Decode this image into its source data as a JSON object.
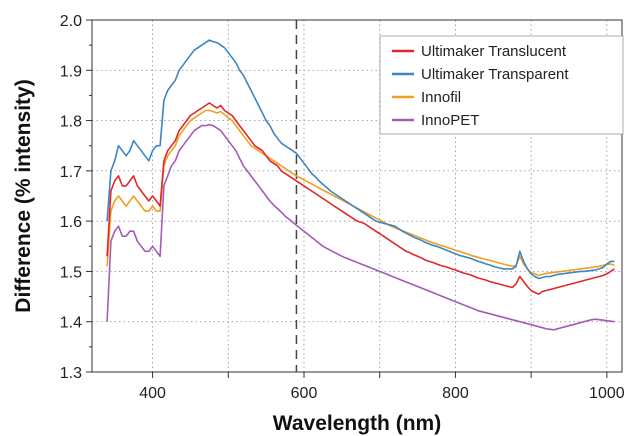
{
  "chart_data": {
    "type": "line",
    "title": "",
    "xlabel": "Wavelength (nm)",
    "ylabel": "Difference (% intensity)",
    "xlim": [
      320,
      1020
    ],
    "ylim": [
      1.3,
      2.0
    ],
    "xticks": [
      400,
      600,
      800,
      1000
    ],
    "yticks": [
      1.3,
      1.4,
      1.5,
      1.6,
      1.7,
      1.8,
      1.9,
      2.0
    ],
    "xtick_labels": [
      "400",
      "600",
      "800",
      "1000"
    ],
    "ytick_labels": [
      "1.3",
      "1.4",
      "1.5",
      "1.6",
      "1.7",
      "1.8",
      "1.9",
      "2.0"
    ],
    "grid": true,
    "legend_position": "top-right",
    "vline": 590,
    "x": [
      340,
      345,
      350,
      355,
      360,
      365,
      370,
      375,
      380,
      385,
      390,
      395,
      400,
      405,
      410,
      415,
      420,
      425,
      430,
      435,
      440,
      445,
      450,
      455,
      460,
      465,
      470,
      475,
      480,
      485,
      490,
      495,
      500,
      505,
      510,
      515,
      520,
      525,
      530,
      535,
      540,
      545,
      550,
      555,
      560,
      565,
      570,
      575,
      580,
      585,
      590,
      595,
      600,
      605,
      610,
      615,
      620,
      625,
      630,
      635,
      640,
      645,
      650,
      655,
      660,
      665,
      670,
      675,
      680,
      685,
      690,
      695,
      700,
      705,
      710,
      715,
      720,
      725,
      730,
      735,
      740,
      745,
      750,
      755,
      760,
      765,
      770,
      775,
      780,
      785,
      790,
      795,
      800,
      805,
      810,
      815,
      820,
      825,
      830,
      835,
      840,
      845,
      850,
      855,
      860,
      865,
      870,
      875,
      880,
      885,
      890,
      895,
      900,
      905,
      910,
      915,
      920,
      925,
      930,
      935,
      940,
      945,
      950,
      955,
      960,
      965,
      970,
      975,
      980,
      985,
      990,
      995,
      1000,
      1005,
      1010
    ],
    "series": [
      {
        "name": "Ultimaker Translucent",
        "color": "#e0282b",
        "values": [
          1.53,
          1.66,
          1.68,
          1.69,
          1.67,
          1.67,
          1.68,
          1.69,
          1.67,
          1.66,
          1.65,
          1.64,
          1.65,
          1.64,
          1.63,
          1.72,
          1.74,
          1.75,
          1.76,
          1.78,
          1.79,
          1.8,
          1.81,
          1.815,
          1.82,
          1.825,
          1.83,
          1.835,
          1.83,
          1.825,
          1.83,
          1.82,
          1.815,
          1.81,
          1.8,
          1.79,
          1.78,
          1.77,
          1.76,
          1.75,
          1.745,
          1.74,
          1.73,
          1.72,
          1.715,
          1.71,
          1.7,
          1.695,
          1.69,
          1.685,
          1.68,
          1.675,
          1.67,
          1.665,
          1.66,
          1.655,
          1.65,
          1.645,
          1.64,
          1.635,
          1.63,
          1.625,
          1.62,
          1.615,
          1.61,
          1.605,
          1.6,
          1.598,
          1.595,
          1.59,
          1.585,
          1.58,
          1.575,
          1.57,
          1.565,
          1.56,
          1.555,
          1.55,
          1.545,
          1.54,
          1.537,
          1.533,
          1.53,
          1.527,
          1.523,
          1.52,
          1.518,
          1.515,
          1.512,
          1.51,
          1.508,
          1.505,
          1.503,
          1.5,
          1.497,
          1.495,
          1.493,
          1.49,
          1.487,
          1.485,
          1.483,
          1.48,
          1.478,
          1.476,
          1.474,
          1.472,
          1.47,
          1.468,
          1.475,
          1.49,
          1.48,
          1.47,
          1.462,
          1.458,
          1.455,
          1.46,
          1.462,
          1.464,
          1.466,
          1.468,
          1.47,
          1.472,
          1.474,
          1.476,
          1.478,
          1.48,
          1.482,
          1.484,
          1.486,
          1.488,
          1.49,
          1.492,
          1.495,
          1.5,
          1.505
        ]
      },
      {
        "name": "Ultimaker Transparent",
        "color": "#3b86c4",
        "values": [
          1.6,
          1.7,
          1.72,
          1.75,
          1.74,
          1.73,
          1.74,
          1.76,
          1.75,
          1.74,
          1.73,
          1.72,
          1.74,
          1.75,
          1.75,
          1.84,
          1.86,
          1.87,
          1.88,
          1.9,
          1.91,
          1.92,
          1.93,
          1.94,
          1.945,
          1.95,
          1.955,
          1.96,
          1.957,
          1.955,
          1.95,
          1.945,
          1.935,
          1.925,
          1.915,
          1.9,
          1.89,
          1.875,
          1.86,
          1.845,
          1.83,
          1.815,
          1.8,
          1.79,
          1.775,
          1.765,
          1.755,
          1.75,
          1.745,
          1.74,
          1.735,
          1.725,
          1.715,
          1.705,
          1.695,
          1.688,
          1.68,
          1.673,
          1.667,
          1.66,
          1.655,
          1.65,
          1.645,
          1.64,
          1.635,
          1.63,
          1.625,
          1.62,
          1.615,
          1.61,
          1.605,
          1.6,
          1.598,
          1.596,
          1.594,
          1.592,
          1.59,
          1.585,
          1.58,
          1.576,
          1.572,
          1.568,
          1.565,
          1.562,
          1.558,
          1.555,
          1.552,
          1.55,
          1.547,
          1.544,
          1.541,
          1.538,
          1.535,
          1.532,
          1.53,
          1.528,
          1.526,
          1.523,
          1.52,
          1.518,
          1.515,
          1.513,
          1.51,
          1.508,
          1.506,
          1.505,
          1.505,
          1.505,
          1.51,
          1.54,
          1.52,
          1.505,
          1.495,
          1.49,
          1.486,
          1.488,
          1.49,
          1.49,
          1.492,
          1.494,
          1.495,
          1.496,
          1.497,
          1.498,
          1.499,
          1.5,
          1.5,
          1.501,
          1.502,
          1.503,
          1.505,
          1.508,
          1.515,
          1.52,
          1.52
        ]
      },
      {
        "name": "Innofil",
        "color": "#f0a020",
        "values": [
          1.51,
          1.62,
          1.64,
          1.65,
          1.64,
          1.63,
          1.64,
          1.65,
          1.64,
          1.63,
          1.62,
          1.62,
          1.63,
          1.62,
          1.62,
          1.71,
          1.73,
          1.74,
          1.75,
          1.77,
          1.78,
          1.79,
          1.8,
          1.805,
          1.81,
          1.815,
          1.82,
          1.82,
          1.818,
          1.815,
          1.818,
          1.812,
          1.805,
          1.8,
          1.79,
          1.78,
          1.77,
          1.76,
          1.75,
          1.745,
          1.74,
          1.735,
          1.73,
          1.725,
          1.72,
          1.715,
          1.71,
          1.705,
          1.7,
          1.695,
          1.69,
          1.686,
          1.682,
          1.678,
          1.674,
          1.67,
          1.666,
          1.662,
          1.658,
          1.654,
          1.65,
          1.646,
          1.642,
          1.638,
          1.634,
          1.63,
          1.626,
          1.622,
          1.618,
          1.614,
          1.61,
          1.606,
          1.602,
          1.598,
          1.594,
          1.59,
          1.587,
          1.584,
          1.581,
          1.578,
          1.575,
          1.572,
          1.569,
          1.566,
          1.563,
          1.56,
          1.557,
          1.555,
          1.552,
          1.55,
          1.547,
          1.545,
          1.542,
          1.54,
          1.537,
          1.535,
          1.532,
          1.53,
          1.528,
          1.526,
          1.524,
          1.522,
          1.52,
          1.518,
          1.516,
          1.514,
          1.512,
          1.51,
          1.512,
          1.53,
          1.515,
          1.505,
          1.498,
          1.495,
          1.492,
          1.494,
          1.496,
          1.497,
          1.498,
          1.499,
          1.5,
          1.501,
          1.502,
          1.503,
          1.504,
          1.505,
          1.506,
          1.507,
          1.508,
          1.509,
          1.51,
          1.512,
          1.514,
          1.515,
          1.512
        ]
      },
      {
        "name": "InnoPET",
        "color": "#a45bb8",
        "values": [
          1.4,
          1.56,
          1.58,
          1.59,
          1.57,
          1.57,
          1.58,
          1.58,
          1.56,
          1.55,
          1.54,
          1.54,
          1.55,
          1.54,
          1.53,
          1.67,
          1.69,
          1.71,
          1.72,
          1.74,
          1.75,
          1.76,
          1.77,
          1.78,
          1.785,
          1.79,
          1.79,
          1.792,
          1.79,
          1.785,
          1.78,
          1.77,
          1.76,
          1.75,
          1.74,
          1.725,
          1.71,
          1.7,
          1.69,
          1.68,
          1.67,
          1.66,
          1.65,
          1.64,
          1.632,
          1.625,
          1.618,
          1.61,
          1.604,
          1.598,
          1.592,
          1.586,
          1.58,
          1.574,
          1.568,
          1.562,
          1.556,
          1.55,
          1.546,
          1.542,
          1.538,
          1.534,
          1.53,
          1.527,
          1.524,
          1.521,
          1.518,
          1.515,
          1.512,
          1.509,
          1.506,
          1.503,
          1.5,
          1.497,
          1.494,
          1.491,
          1.488,
          1.485,
          1.482,
          1.479,
          1.476,
          1.473,
          1.47,
          1.467,
          1.464,
          1.461,
          1.458,
          1.455,
          1.452,
          1.449,
          1.446,
          1.443,
          1.44,
          1.437,
          1.434,
          1.431,
          1.428,
          1.425,
          1.422,
          1.42,
          1.418,
          1.416,
          1.414,
          1.412,
          1.41,
          1.408,
          1.406,
          1.404,
          1.402,
          1.4,
          1.398,
          1.396,
          1.394,
          1.392,
          1.39,
          1.388,
          1.386,
          1.385,
          1.384,
          1.386,
          1.388,
          1.39,
          1.392,
          1.394,
          1.396,
          1.398,
          1.4,
          1.402,
          1.404,
          1.405,
          1.404,
          1.403,
          1.402,
          1.401,
          1.4
        ]
      }
    ]
  }
}
